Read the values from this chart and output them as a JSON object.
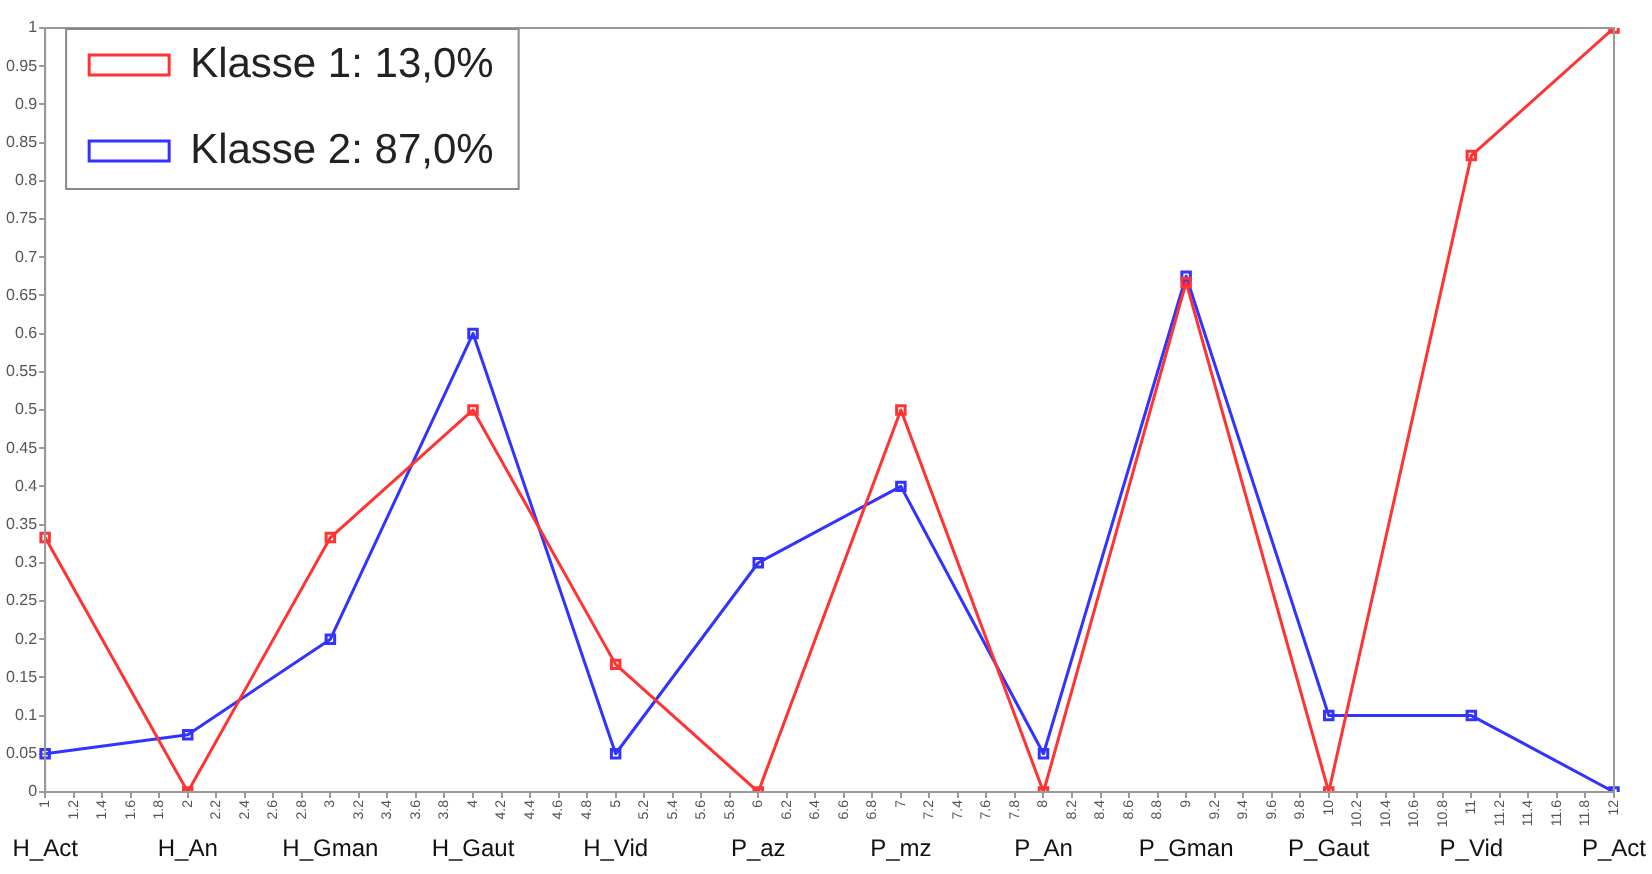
{
  "chart_data": {
    "type": "line",
    "categories": [
      "H_Act",
      "H_An",
      "H_Gman",
      "H_Gaut",
      "H_Vid",
      "P_az",
      "P_mz",
      "P_An",
      "P_Gman",
      "P_Gaut",
      "P_Vid",
      "P_Act"
    ],
    "series": [
      {
        "name": "Klasse 1: 13,0%",
        "color": "#ff3333",
        "values": [
          0.333,
          0,
          0.333,
          0.5,
          0.167,
          0,
          0.5,
          0,
          0.667,
          0,
          0.833,
          1
        ]
      },
      {
        "name": "Klasse 2: 87,0%",
        "color": "#3333ff",
        "values": [
          0.05,
          0.075,
          0.2,
          0.6,
          0.05,
          0.3,
          0.4,
          0.05,
          0.675,
          0.1,
          0.1,
          0
        ]
      }
    ],
    "x2lim": [
      1,
      12
    ],
    "x2ticks": [
      1,
      1.2,
      1.4,
      1.6,
      1.8,
      2,
      2.2,
      2.4,
      2.6,
      2.8,
      3,
      3.2,
      3.4,
      3.6,
      3.8,
      4,
      4.2,
      4.4,
      4.6,
      4.8,
      5,
      5.2,
      5.4,
      5.6,
      5.8,
      6,
      6.2,
      6.4,
      6.6,
      6.8,
      7,
      7.2,
      7.4,
      7.6,
      7.8,
      8,
      8.2,
      8.4,
      8.6,
      8.8,
      9,
      9.2,
      9.4,
      9.6,
      9.8,
      10,
      10.2,
      10.4,
      10.6,
      10.8,
      11,
      11.2,
      11.4,
      11.6,
      11.8,
      12
    ],
    "ylim": [
      0,
      1
    ],
    "yticks": [
      0,
      0.05,
      0.1,
      0.15,
      0.2,
      0.25,
      0.3,
      0.35,
      0.4,
      0.45,
      0.5,
      0.55,
      0.6,
      0.65,
      0.7,
      0.75,
      0.8,
      0.85,
      0.9,
      0.95,
      1
    ],
    "grid": false,
    "legend": "top left",
    "marker": "square",
    "line_style": "solid"
  }
}
